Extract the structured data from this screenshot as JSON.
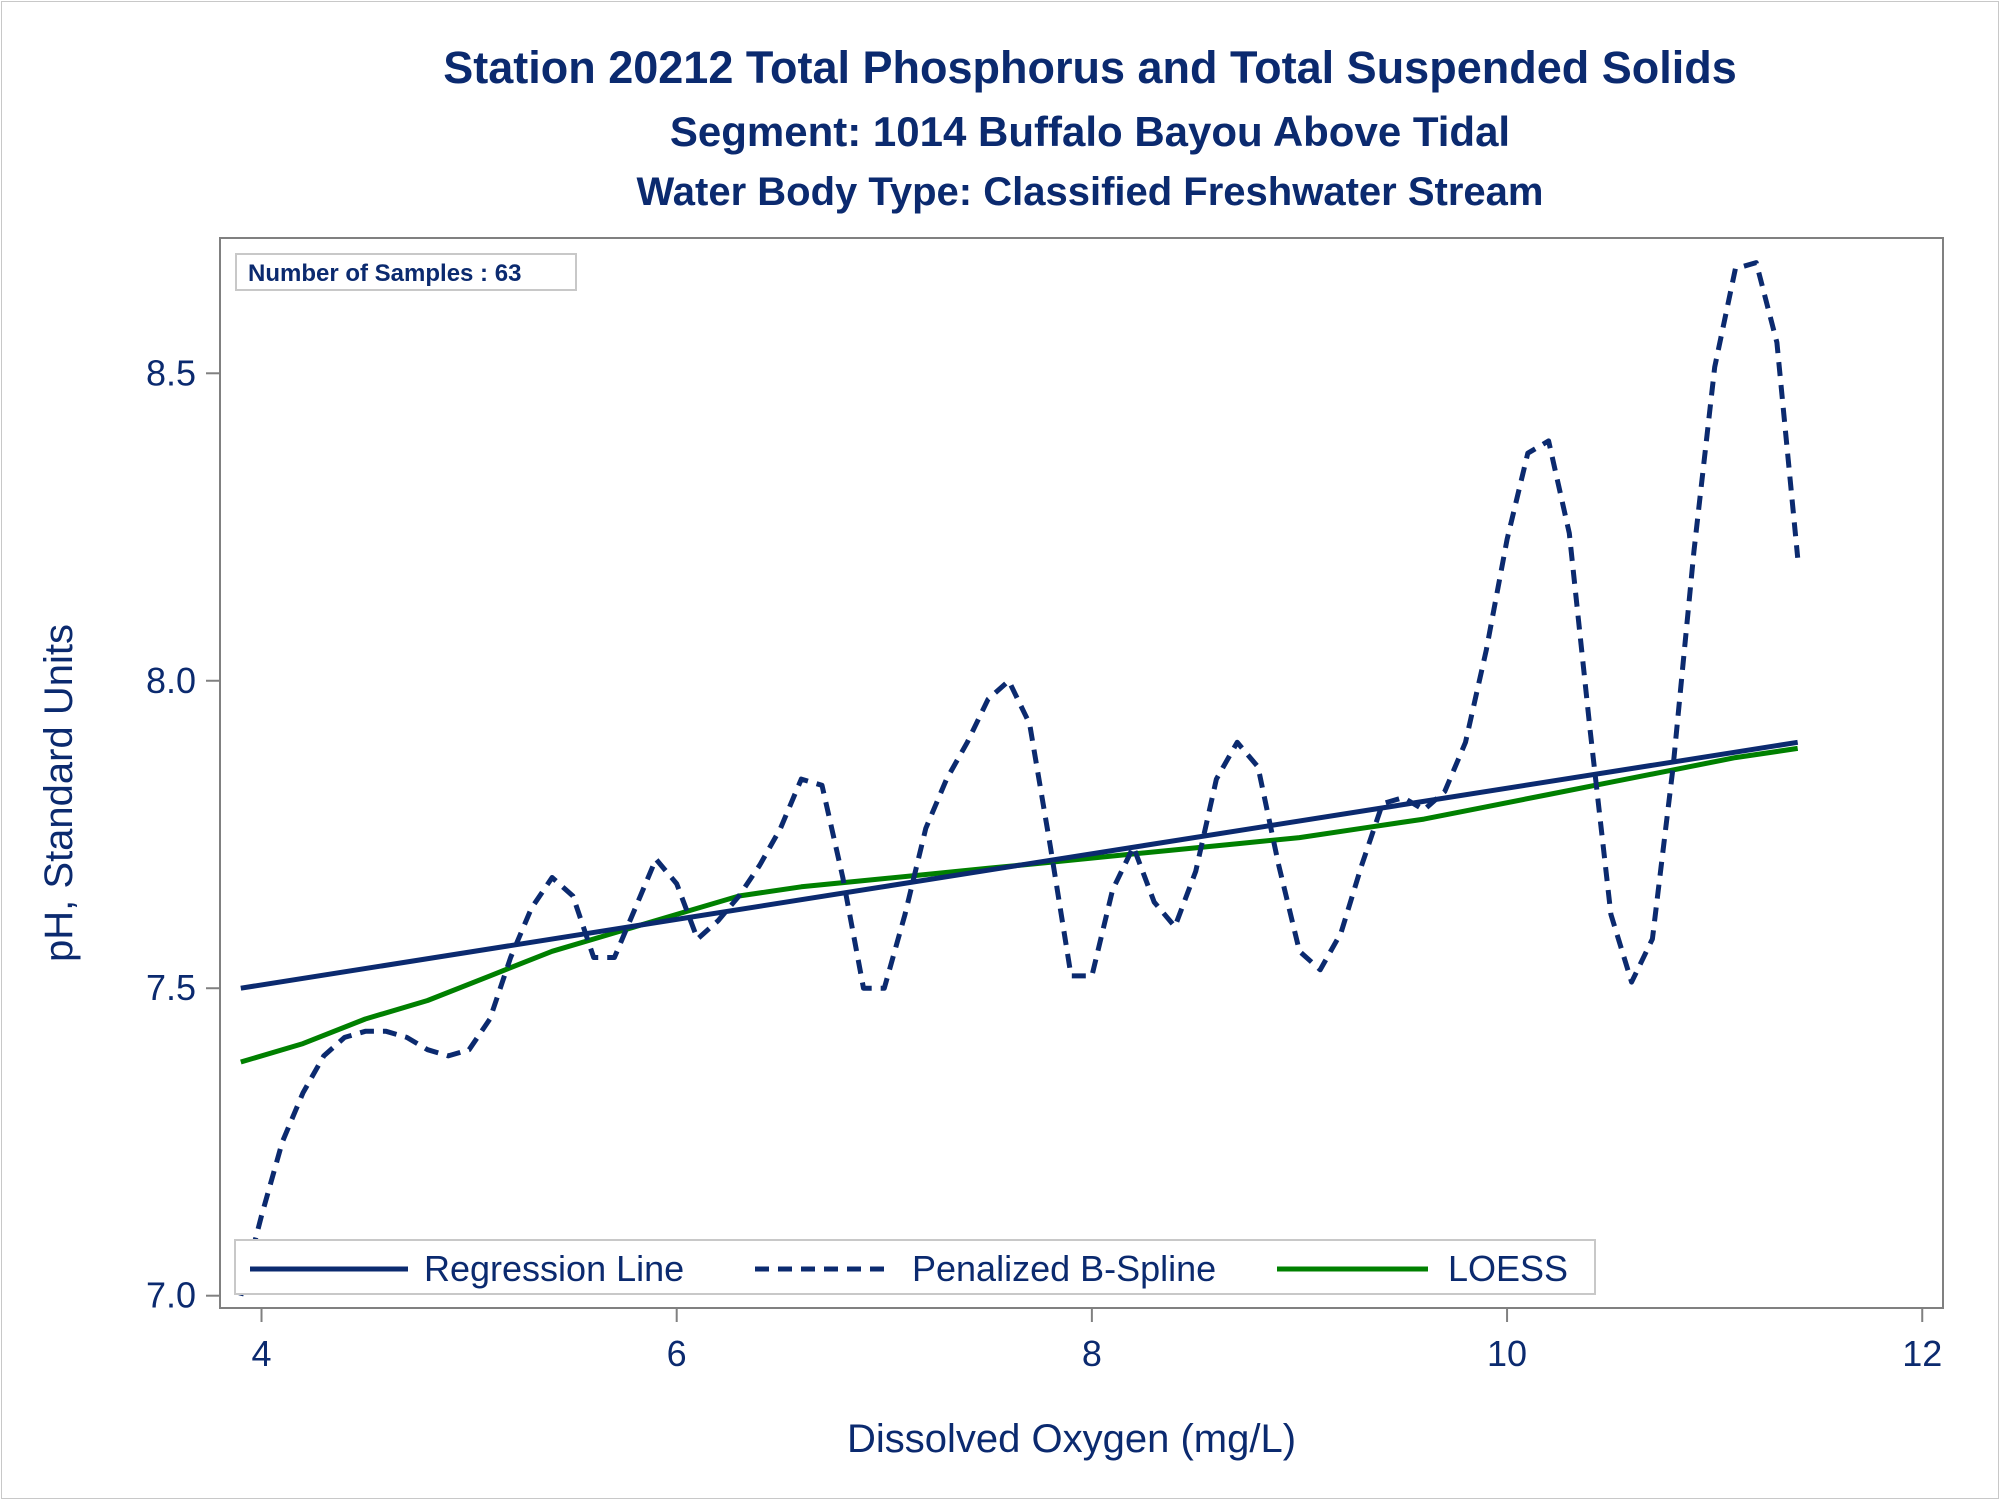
{
  "titles": {
    "line1": "Station 20212  Total Phosphorus and Total Suspended Solids",
    "line2": "Segment: 1014  Buffalo Bayou Above Tidal",
    "line3": "Water Body Type: Classified Freshwater Stream"
  },
  "annotation": "Number of Samples : 63",
  "colors": {
    "text": "#0b2a6f",
    "regression": "#0b2a6f",
    "spline": "#0b2a6f",
    "loess": "#008000",
    "axis": "#808080"
  },
  "chart_data": {
    "type": "line",
    "xlabel": "Dissolved Oxygen (mg/L)",
    "ylabel": "pH, Standard Units",
    "xlim": [
      3.8,
      12.1
    ],
    "ylim": [
      6.98,
      8.72
    ],
    "xticks": [
      4,
      6,
      8,
      10,
      12
    ],
    "yticks": [
      7.0,
      7.5,
      8.0,
      8.5
    ],
    "ytick_labels": [
      "7.0",
      "7.5",
      "8.0",
      "8.5"
    ],
    "legend_position": "bottom-inside",
    "series": [
      {
        "name": "Regression Line",
        "style": "solid",
        "x": [
          3.9,
          11.4
        ],
        "y": [
          7.5,
          7.9
        ]
      },
      {
        "name": "Penalized B-Spline",
        "style": "dashed",
        "x": [
          3.9,
          4.0,
          4.1,
          4.2,
          4.3,
          4.4,
          4.5,
          4.6,
          4.7,
          4.8,
          4.9,
          5.0,
          5.1,
          5.2,
          5.3,
          5.4,
          5.5,
          5.6,
          5.7,
          5.8,
          5.9,
          6.0,
          6.1,
          6.2,
          6.3,
          6.4,
          6.5,
          6.6,
          6.7,
          6.8,
          6.9,
          7.0,
          7.1,
          7.2,
          7.3,
          7.4,
          7.5,
          7.6,
          7.7,
          7.8,
          7.9,
          8.0,
          8.1,
          8.2,
          8.3,
          8.4,
          8.5,
          8.6,
          8.7,
          8.8,
          8.9,
          9.0,
          9.1,
          9.2,
          9.3,
          9.4,
          9.5,
          9.6,
          9.7,
          9.8,
          9.9,
          10.0,
          10.1,
          10.2,
          10.3,
          10.4,
          10.5,
          10.6,
          10.7,
          10.8,
          10.9,
          11.0,
          11.1,
          11.2,
          11.3,
          11.4
        ],
        "y": [
          7.0,
          7.13,
          7.25,
          7.33,
          7.39,
          7.42,
          7.43,
          7.43,
          7.42,
          7.4,
          7.39,
          7.4,
          7.45,
          7.55,
          7.63,
          7.68,
          7.65,
          7.55,
          7.55,
          7.63,
          7.71,
          7.67,
          7.58,
          7.61,
          7.65,
          7.7,
          7.76,
          7.84,
          7.83,
          7.68,
          7.5,
          7.5,
          7.62,
          7.76,
          7.84,
          7.9,
          7.97,
          8.0,
          7.93,
          7.73,
          7.52,
          7.52,
          7.66,
          7.73,
          7.64,
          7.6,
          7.69,
          7.84,
          7.9,
          7.86,
          7.7,
          7.56,
          7.53,
          7.59,
          7.7,
          7.8,
          7.81,
          7.79,
          7.82,
          7.9,
          8.05,
          8.23,
          8.37,
          8.39,
          8.24,
          7.92,
          7.62,
          7.51,
          7.58,
          7.86,
          8.21,
          8.51,
          8.67,
          8.68,
          8.55,
          8.2
        ]
      },
      {
        "name": "LOESS",
        "style": "solid",
        "x": [
          3.9,
          4.2,
          4.5,
          4.8,
          5.1,
          5.4,
          5.7,
          6.0,
          6.3,
          6.6,
          6.9,
          7.2,
          7.5,
          7.8,
          8.1,
          8.4,
          8.7,
          9.0,
          9.3,
          9.6,
          9.9,
          10.2,
          10.5,
          10.8,
          11.1,
          11.4
        ],
        "y": [
          7.38,
          7.41,
          7.45,
          7.48,
          7.52,
          7.56,
          7.59,
          7.62,
          7.65,
          7.665,
          7.675,
          7.685,
          7.695,
          7.705,
          7.715,
          7.725,
          7.735,
          7.745,
          7.76,
          7.775,
          7.795,
          7.815,
          7.835,
          7.855,
          7.875,
          7.89
        ]
      }
    ]
  }
}
